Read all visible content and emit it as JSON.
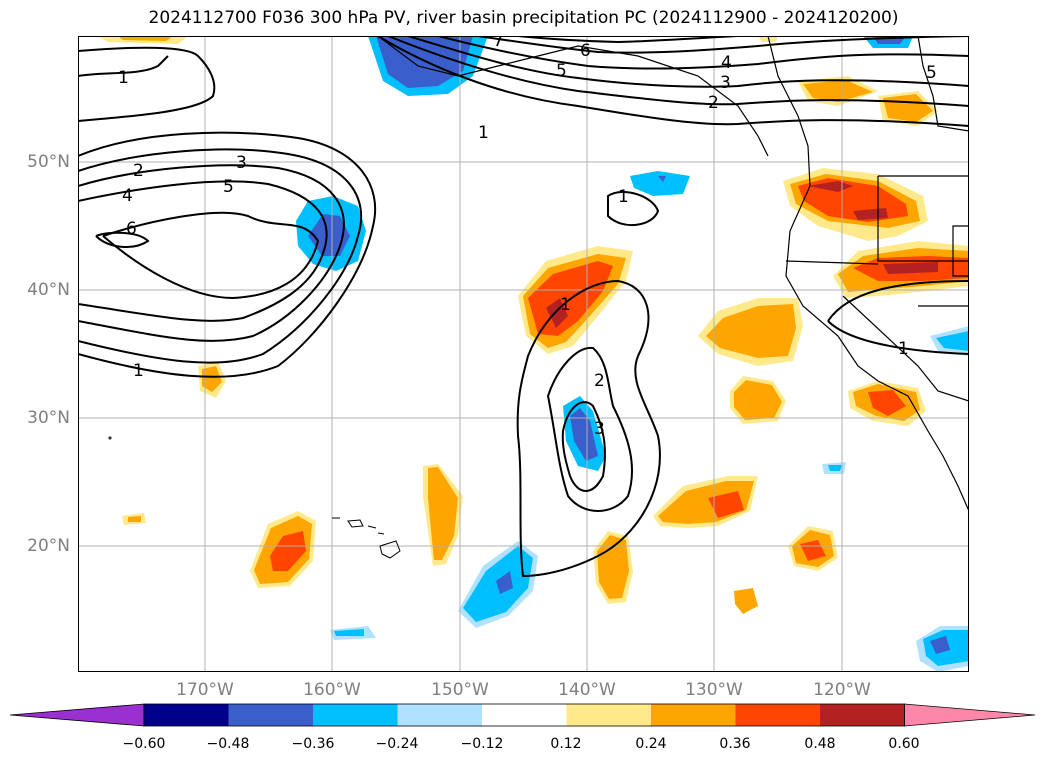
{
  "title": "2024112700 F036 300 hPa PV, river basin precipitation PC (2024112900 - 2024120200)",
  "axes": {
    "lat_labels": [
      "50°N",
      "40°N",
      "30°N",
      "20°N"
    ],
    "lon_labels": [
      "170°W",
      "160°W",
      "150°W",
      "140°W",
      "130°W",
      "120°W"
    ]
  },
  "contour_labels": [
    "1",
    "2",
    "3",
    "4",
    "5",
    "6",
    "7",
    "1",
    "2",
    "3",
    "4",
    "5",
    "6",
    "1",
    "1",
    "2",
    "3",
    "1",
    "1",
    "5"
  ],
  "colorbar": {
    "ticks": [
      "−0.60",
      "−0.48",
      "−0.36",
      "−0.24",
      "−0.12",
      "0.12",
      "0.24",
      "0.36",
      "0.48",
      "0.60"
    ],
    "colors": [
      "#9b30d0",
      "#00008b",
      "#3a5fcd",
      "#00bfff",
      "#b0e2ff",
      "#ffffff",
      "#ffe98a",
      "#ffa500",
      "#ff4500",
      "#b22222",
      "#ff88aa"
    ]
  },
  "colors": {
    "strong_neg": "#3a5fcd",
    "neg": "#00bfff",
    "weak_neg": "#b0e2ff",
    "weak_pos": "#ffe98a",
    "pos": "#ffa500",
    "strong_pos": "#ff4500",
    "very_strong_pos": "#b22222",
    "darkest_neg": "#2020a0"
  }
}
